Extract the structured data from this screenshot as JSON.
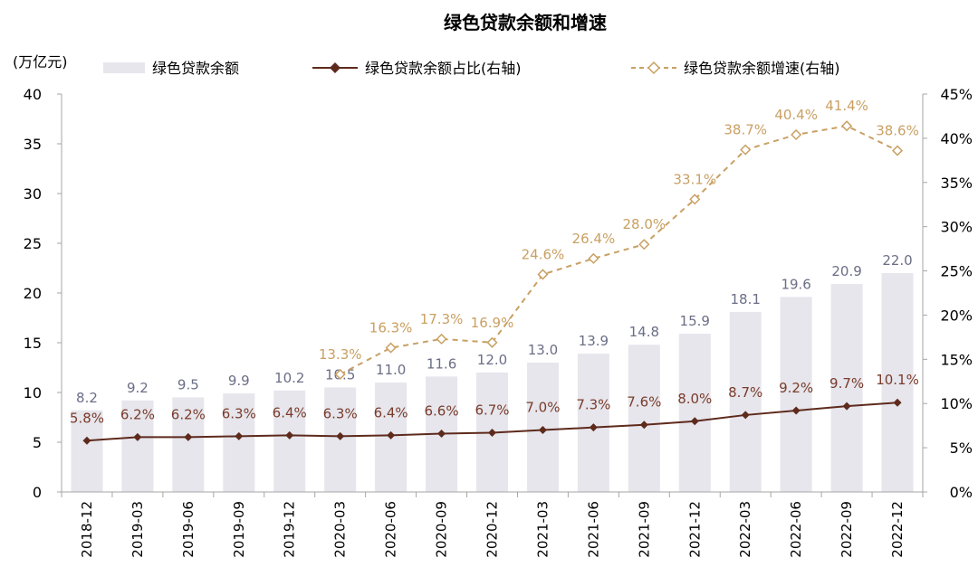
{
  "chart_data": {
    "type": "bar+line",
    "title": "绿色贷款余额和增速",
    "ylabel_left": "(万亿元)",
    "ylim_left": [
      0,
      40
    ],
    "yticks_left": [
      "0",
      "5",
      "10",
      "15",
      "20",
      "25",
      "30",
      "35",
      "40"
    ],
    "ylim_right": [
      0,
      45
    ],
    "yticks_right": [
      "0%",
      "5%",
      "10%",
      "15%",
      "20%",
      "25%",
      "30%",
      "35%",
      "40%",
      "45%"
    ],
    "categories": [
      "2018-12",
      "2019-03",
      "2019-06",
      "2019-09",
      "2019-12",
      "2020-03",
      "2020-06",
      "2020-09",
      "2020-12",
      "2021-03",
      "2021-06",
      "2021-09",
      "2021-12",
      "2022-03",
      "2022-06",
      "2022-09",
      "2022-12"
    ],
    "legend": [
      "绿色贷款余额",
      "绿色贷款余额占比(右轴)",
      "绿色贷款余额增速(右轴)"
    ],
    "legend_position": "top",
    "series": [
      {
        "name": "绿色贷款余额",
        "kind": "bar",
        "axis": "left",
        "values": [
          8.2,
          9.2,
          9.5,
          9.9,
          10.2,
          10.5,
          11.0,
          11.6,
          12.0,
          13.0,
          13.9,
          14.8,
          15.9,
          18.1,
          19.6,
          20.9,
          22.0
        ],
        "labels": [
          "8.2",
          "9.2",
          "9.5",
          "9.9",
          "10.2",
          "10.5",
          "11.0",
          "11.6",
          "12.0",
          "13.0",
          "13.9",
          "14.8",
          "15.9",
          "18.1",
          "19.6",
          "20.9",
          "22.0"
        ],
        "color": "#e6e6ec"
      },
      {
        "name": "绿色贷款余额占比(右轴)",
        "kind": "line",
        "axis": "right",
        "values": [
          5.8,
          6.2,
          6.2,
          6.3,
          6.4,
          6.3,
          6.4,
          6.6,
          6.7,
          7.0,
          7.3,
          7.6,
          8.0,
          8.7,
          9.2,
          9.7,
          10.1
        ],
        "labels": [
          "5.8%",
          "6.2%",
          "6.2%",
          "6.3%",
          "6.4%",
          "6.3%",
          "6.4%",
          "6.6%",
          "6.7%",
          "7.0%",
          "7.3%",
          "7.6%",
          "8.0%",
          "8.7%",
          "9.2%",
          "9.7%",
          "10.1%"
        ],
        "color": "#5e2a1c"
      },
      {
        "name": "绿色贷款余额增速(右轴)",
        "kind": "line-dashed",
        "axis": "right",
        "values": [
          null,
          null,
          null,
          null,
          null,
          13.3,
          16.3,
          17.3,
          16.9,
          24.6,
          26.4,
          28.0,
          33.1,
          38.7,
          40.4,
          41.4,
          38.6
        ],
        "labels": [
          "",
          "",
          "",
          "",
          "",
          "13.3%",
          "16.3%",
          "17.3%",
          "16.9%",
          "24.6%",
          "26.4%",
          "28.0%",
          "33.1%",
          "38.7%",
          "40.4%",
          "41.4%",
          "38.6%"
        ],
        "color": "#c9a063"
      }
    ]
  }
}
